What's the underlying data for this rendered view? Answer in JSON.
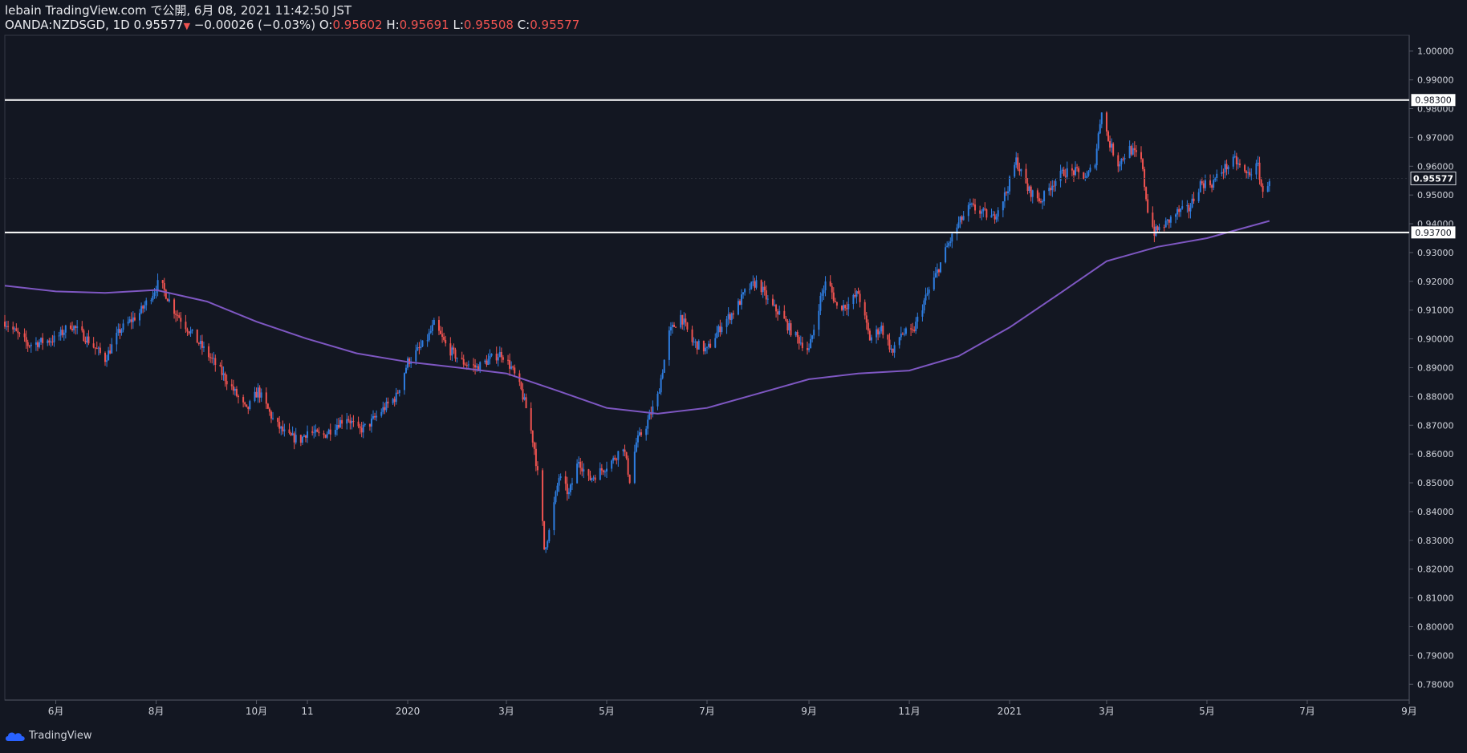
{
  "header": {
    "publisher_line": "lebain TradingView.com で公開, 6月 08, 2021 11:42:50 JST",
    "symbol": "OANDA:NZDSGD, 1D",
    "last": "0.95577",
    "change": "−0.00026 (−0.03%)",
    "o_label": "O:",
    "o_value": "0.95602",
    "h_label": "H:",
    "h_value": "0.95691",
    "l_label": "L:",
    "l_value": "0.95508",
    "c_label": "C:",
    "c_value": "0.95577"
  },
  "footer": {
    "brand": "TradingView"
  },
  "colors": {
    "background": "#131722",
    "up": "#2e7de0",
    "down": "#ef5350",
    "ma": "#7e57c2",
    "lines": "#ffffff",
    "text": "#d1d4dc"
  },
  "chart_data": {
    "type": "candlestick",
    "y_ticks": [
      "1.00000",
      "0.99000",
      "0.98000",
      "0.97000",
      "0.96000",
      "0.95000",
      "0.94000",
      "0.93000",
      "0.92000",
      "0.91000",
      "0.90000",
      "0.89000",
      "0.88000",
      "0.87000",
      "0.86000",
      "0.85000",
      "0.84000",
      "0.83000",
      "0.82000",
      "0.81000",
      "0.80000",
      "0.79000",
      "0.78000"
    ],
    "ylim": [
      0.7745,
      1.0055
    ],
    "x_ticks": [
      {
        "label": "6月",
        "date": "2019-06-01"
      },
      {
        "label": "8月",
        "date": "2019-08-01"
      },
      {
        "label": "10月",
        "date": "2019-10-01"
      },
      {
        "label": "11",
        "date": "2019-11-01"
      },
      {
        "label": "2020",
        "date": "2020-01-01"
      },
      {
        "label": "3月",
        "date": "2020-03-01"
      },
      {
        "label": "5月",
        "date": "2020-05-01"
      },
      {
        "label": "7月",
        "date": "2020-07-01"
      },
      {
        "label": "9月",
        "date": "2020-09-01"
      },
      {
        "label": "11月",
        "date": "2020-11-01"
      },
      {
        "label": "2021",
        "date": "2021-01-01"
      },
      {
        "label": "3月",
        "date": "2021-03-01"
      },
      {
        "label": "5月",
        "date": "2021-05-01"
      },
      {
        "label": "7月",
        "date": "2021-07-01"
      },
      {
        "label": "9月",
        "date": "2021-09-01"
      }
    ],
    "xlim": [
      "2019-05-01",
      "2021-09-01"
    ],
    "horizontal_lines": [
      {
        "value": 0.983,
        "label": "0.98300"
      },
      {
        "value": 0.937,
        "label": "0.93700"
      }
    ],
    "last_price": {
      "value": 0.95577,
      "label": "0.95577"
    },
    "price_path": [
      [
        "2019-05-01",
        0.906
      ],
      [
        "2019-05-15",
        0.898
      ],
      [
        "2019-06-01",
        0.9
      ],
      [
        "2019-06-10",
        0.905
      ],
      [
        "2019-06-20",
        0.9
      ],
      [
        "2019-07-01",
        0.893
      ],
      [
        "2019-07-10",
        0.903
      ],
      [
        "2019-07-22",
        0.909
      ],
      [
        "2019-07-30",
        0.916
      ],
      [
        "2019-08-03",
        0.92
      ],
      [
        "2019-08-12",
        0.91
      ],
      [
        "2019-08-25",
        0.9
      ],
      [
        "2019-09-05",
        0.892
      ],
      [
        "2019-09-15",
        0.884
      ],
      [
        "2019-09-25",
        0.875
      ],
      [
        "2019-10-02",
        0.882
      ],
      [
        "2019-10-12",
        0.871
      ],
      [
        "2019-10-20",
        0.866
      ],
      [
        "2019-10-28",
        0.865
      ],
      [
        "2019-11-01",
        0.868
      ],
      [
        "2019-11-10",
        0.866
      ],
      [
        "2019-11-18",
        0.87
      ],
      [
        "2019-11-25",
        0.873
      ],
      [
        "2019-12-02",
        0.868
      ],
      [
        "2019-12-08",
        0.87
      ],
      [
        "2019-12-16",
        0.875
      ],
      [
        "2019-12-25",
        0.88
      ],
      [
        "2020-01-01",
        0.892
      ],
      [
        "2020-01-12",
        0.899
      ],
      [
        "2020-01-17",
        0.905
      ],
      [
        "2020-01-25",
        0.897
      ],
      [
        "2020-02-03",
        0.892
      ],
      [
        "2020-02-12",
        0.89
      ],
      [
        "2020-02-20",
        0.893
      ],
      [
        "2020-02-27",
        0.895
      ],
      [
        "2020-03-04",
        0.89
      ],
      [
        "2020-03-10",
        0.882
      ],
      [
        "2020-03-14",
        0.874
      ],
      [
        "2020-03-18",
        0.862
      ],
      [
        "2020-03-22",
        0.844
      ],
      [
        "2020-03-24",
        0.827
      ],
      [
        "2020-03-27",
        0.833
      ],
      [
        "2020-04-02",
        0.852
      ],
      [
        "2020-04-08",
        0.846
      ],
      [
        "2020-04-14",
        0.858
      ],
      [
        "2020-04-20",
        0.851
      ],
      [
        "2020-04-27",
        0.854
      ],
      [
        "2020-05-05",
        0.858
      ],
      [
        "2020-05-11",
        0.863
      ],
      [
        "2020-05-15",
        0.851
      ],
      [
        "2020-05-19",
        0.864
      ],
      [
        "2020-05-25",
        0.87
      ],
      [
        "2020-06-01",
        0.88
      ],
      [
        "2020-06-08",
        0.902
      ],
      [
        "2020-06-15",
        0.908
      ],
      [
        "2020-06-22",
        0.899
      ],
      [
        "2020-07-01",
        0.896
      ],
      [
        "2020-07-10",
        0.905
      ],
      [
        "2020-07-18",
        0.91
      ],
      [
        "2020-07-25",
        0.917
      ],
      [
        "2020-08-01",
        0.92
      ],
      [
        "2020-08-08",
        0.912
      ],
      [
        "2020-08-14",
        0.909
      ],
      [
        "2020-08-22",
        0.902
      ],
      [
        "2020-09-01",
        0.896
      ],
      [
        "2020-09-08",
        0.914
      ],
      [
        "2020-09-12",
        0.921
      ],
      [
        "2020-09-18",
        0.911
      ],
      [
        "2020-09-25",
        0.912
      ],
      [
        "2020-10-01",
        0.916
      ],
      [
        "2020-10-08",
        0.9
      ],
      [
        "2020-10-15",
        0.904
      ],
      [
        "2020-10-22",
        0.895
      ],
      [
        "2020-10-27",
        0.902
      ],
      [
        "2020-11-03",
        0.902
      ],
      [
        "2020-11-10",
        0.913
      ],
      [
        "2020-11-17",
        0.922
      ],
      [
        "2020-11-24",
        0.932
      ],
      [
        "2020-12-01",
        0.94
      ],
      [
        "2020-12-08",
        0.946
      ],
      [
        "2020-12-15",
        0.944
      ],
      [
        "2020-12-22",
        0.942
      ],
      [
        "2020-12-30",
        0.951
      ],
      [
        "2021-01-05",
        0.962
      ],
      [
        "2021-01-12",
        0.952
      ],
      [
        "2021-01-20",
        0.948
      ],
      [
        "2021-01-27",
        0.954
      ],
      [
        "2021-02-03",
        0.958
      ],
      [
        "2021-02-10",
        0.958
      ],
      [
        "2021-02-17",
        0.956
      ],
      [
        "2021-02-22",
        0.962
      ],
      [
        "2021-02-26",
        0.98
      ],
      [
        "2021-03-02",
        0.969
      ],
      [
        "2021-03-08",
        0.961
      ],
      [
        "2021-03-15",
        0.966
      ],
      [
        "2021-03-22",
        0.962
      ],
      [
        "2021-03-26",
        0.945
      ],
      [
        "2021-03-30",
        0.937
      ],
      [
        "2021-04-06",
        0.94
      ],
      [
        "2021-04-13",
        0.944
      ],
      [
        "2021-04-20",
        0.945
      ],
      [
        "2021-04-27",
        0.954
      ],
      [
        "2021-05-04",
        0.954
      ],
      [
        "2021-05-11",
        0.959
      ],
      [
        "2021-05-18",
        0.962
      ],
      [
        "2021-05-25",
        0.957
      ],
      [
        "2021-06-01",
        0.96
      ],
      [
        "2021-06-04",
        0.95
      ],
      [
        "2021-06-08",
        0.95577
      ]
    ],
    "moving_average": [
      [
        "2019-05-01",
        0.9185
      ],
      [
        "2019-06-01",
        0.9165
      ],
      [
        "2019-07-01",
        0.916
      ],
      [
        "2019-08-01",
        0.917
      ],
      [
        "2019-09-01",
        0.913
      ],
      [
        "2019-10-01",
        0.906
      ],
      [
        "2019-11-01",
        0.9
      ],
      [
        "2019-12-01",
        0.895
      ],
      [
        "2020-01-01",
        0.892
      ],
      [
        "2020-02-01",
        0.89
      ],
      [
        "2020-03-01",
        0.888
      ],
      [
        "2020-04-01",
        0.882
      ],
      [
        "2020-05-01",
        0.876
      ],
      [
        "2020-06-01",
        0.874
      ],
      [
        "2020-07-01",
        0.876
      ],
      [
        "2020-08-01",
        0.881
      ],
      [
        "2020-09-01",
        0.886
      ],
      [
        "2020-10-01",
        0.888
      ],
      [
        "2020-11-01",
        0.889
      ],
      [
        "2020-12-01",
        0.894
      ],
      [
        "2021-01-01",
        0.904
      ],
      [
        "2021-02-01",
        0.916
      ],
      [
        "2021-03-01",
        0.927
      ],
      [
        "2021-04-01",
        0.932
      ],
      [
        "2021-05-01",
        0.935
      ],
      [
        "2021-06-08",
        0.941
      ]
    ]
  }
}
